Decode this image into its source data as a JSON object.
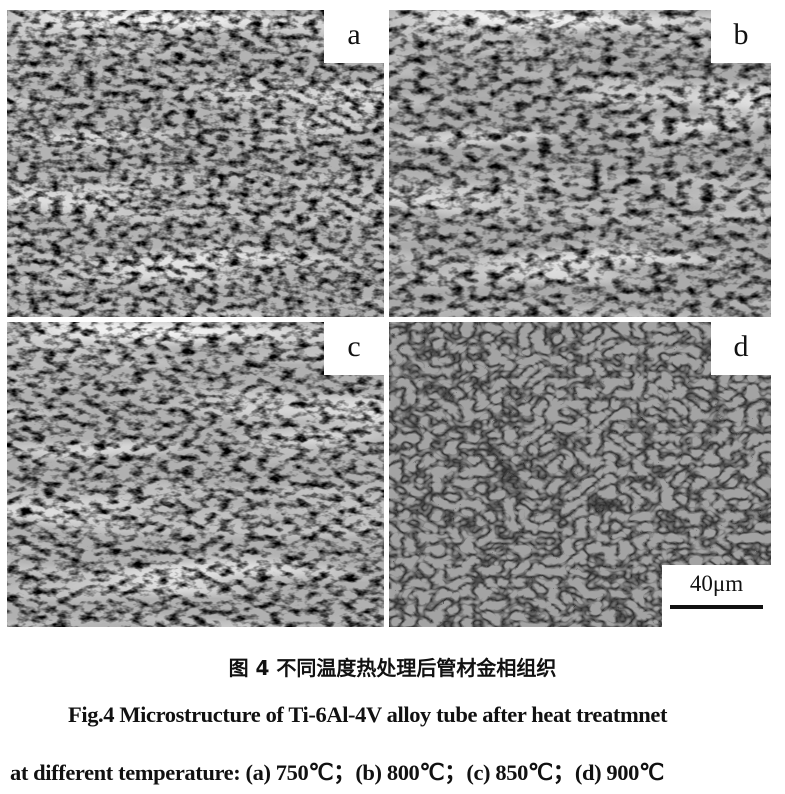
{
  "figure": {
    "panels": [
      {
        "label": "a",
        "temperature": "750℃"
      },
      {
        "label": "b",
        "temperature": "800℃"
      },
      {
        "label": "c",
        "temperature": "850℃"
      },
      {
        "label": "d",
        "temperature": "900℃"
      }
    ],
    "scale_bar": {
      "text": "40μm"
    }
  },
  "caption": {
    "chinese": "图 4  不同温度热处理后管材金相组织",
    "english_line1": "Fig.4 Microstructure of Ti-6Al-4V alloy tube after heat treatmnet",
    "english_line2": "at different temperature: (a) 750℃；(b) 800℃；(c) 850℃；(d) 900℃"
  }
}
